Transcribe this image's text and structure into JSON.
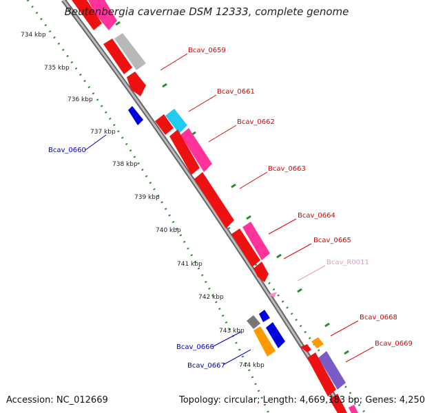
{
  "header": {
    "title": "Beutenbergia cavernae DSM 12333, complete genome"
  },
  "footer": {
    "accession": "Accession: NC_012669",
    "topology": "Topology: circular; Length: 4,669,183 bp; Genes: 4,250"
  },
  "colors": {
    "backbone": "#888888",
    "tick_outer": "#2e8b2e",
    "tick_inner": "#2e8b2e",
    "label_red": "#e00000",
    "label_blue": "#0000c0",
    "label_pink": "#e89ac8"
  },
  "chart_data": {
    "type": "genome-map",
    "axis_unit": "kbp",
    "tick_labels": [
      "734 kbp",
      "735 kbp",
      "736 kbp",
      "737 kbp",
      "738 kbp",
      "739 kbp",
      "740 kbp",
      "741 kbp",
      "742 kbp",
      "743 kbp",
      "744 kbp"
    ],
    "tick_values": [
      734,
      735,
      736,
      737,
      738,
      739,
      740,
      741,
      742,
      743,
      744
    ],
    "gene_labels": [
      {
        "id": "Bcav_0659",
        "strand": "+",
        "color": "#e00000"
      },
      {
        "id": "Bcav_0660",
        "strand": "-",
        "color": "#0000c0"
      },
      {
        "id": "Bcav_0661",
        "strand": "+",
        "color": "#e00000"
      },
      {
        "id": "Bcav_0662",
        "strand": "+",
        "color": "#e00000"
      },
      {
        "id": "Bcav_0663",
        "strand": "+",
        "color": "#e00000"
      },
      {
        "id": "Bcav_0664",
        "strand": "+",
        "color": "#e00000"
      },
      {
        "id": "Bcav_0665",
        "strand": "+",
        "color": "#e00000"
      },
      {
        "id": "Bcav_R0011",
        "strand": "+",
        "color": "#e89ac8"
      },
      {
        "id": "Bcav_0666",
        "strand": "-",
        "color": "#0000c0"
      },
      {
        "id": "Bcav_0667",
        "strand": "-",
        "color": "#0000c0"
      },
      {
        "id": "Bcav_0668",
        "strand": "+",
        "color": "#e00000"
      },
      {
        "id": "Bcav_0669",
        "strand": "+",
        "color": "#e00000"
      }
    ]
  }
}
